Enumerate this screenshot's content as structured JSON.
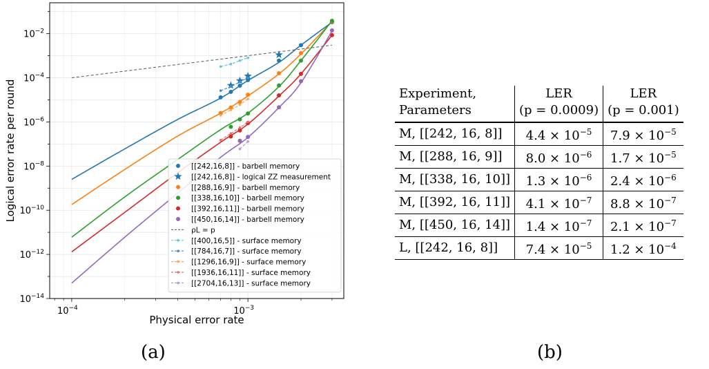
{
  "chart_data": {
    "type": "line",
    "xlabel": "Physical error rate",
    "ylabel": "Logical error rate per round",
    "x_scale": "log",
    "y_scale": "log",
    "xlim": [
      7.5e-05,
      0.0035
    ],
    "ylim": [
      1e-14,
      0.25
    ],
    "grid": true,
    "legend_placement": "lower-right",
    "x_ticks": [
      {
        "value": 0.0001,
        "label": "10"
      },
      {
        "value": 0.001,
        "label": "10"
      }
    ],
    "x_tick_exponents": [
      "−4",
      "−3"
    ],
    "y_ticks": [
      {
        "value": 1e-14,
        "label": "10",
        "exp": "−14"
      },
      {
        "value": 1e-12,
        "label": "10",
        "exp": "−12"
      },
      {
        "value": 1e-10,
        "label": "10",
        "exp": "−10"
      },
      {
        "value": 1e-08,
        "label": "10",
        "exp": "−8"
      },
      {
        "value": 1e-06,
        "label": "10",
        "exp": "−6"
      },
      {
        "value": 0.0001,
        "label": "10",
        "exp": "−4"
      },
      {
        "value": 0.01,
        "label": "10",
        "exp": "−2"
      }
    ],
    "series": [
      {
        "name": "[[242,16,8]] - barbell memory",
        "color": "#1f77b4",
        "style": "fit+markers",
        "curve": [
          [
            0.0001,
            2.5e-09
          ],
          [
            0.0002,
            6e-08
          ],
          [
            0.0004,
            1.3e-06
          ],
          [
            0.0007,
            1.2e-05
          ],
          [
            0.001,
            7.5e-05
          ],
          [
            0.0015,
            0.0005
          ],
          [
            0.002,
            0.003
          ],
          [
            0.003,
            0.033
          ]
        ],
        "markers": [
          [
            0.0007,
            1.3e-05
          ],
          [
            0.0008,
            2.3e-05
          ],
          [
            0.0009,
            4.4e-05
          ],
          [
            0.001,
            7.9e-05
          ],
          [
            0.0015,
            0.0006
          ],
          [
            0.002,
            0.003
          ],
          [
            0.003,
            0.033
          ]
        ]
      },
      {
        "name": "[[242,16,8]] - logical ZZ measurement",
        "color": "#1f77b4",
        "style": "stars",
        "markers": [
          [
            0.0008,
            4.5e-05
          ],
          [
            0.0009,
            7.4e-05
          ],
          [
            0.001,
            0.00012
          ],
          [
            0.0015,
            0.0011
          ]
        ]
      },
      {
        "name": "[[288,16,9]] - barbell memory",
        "color": "#ff7f0e",
        "style": "fit+markers",
        "curve": [
          [
            0.0001,
            1.8e-10
          ],
          [
            0.0002,
            7e-09
          ],
          [
            0.0004,
            2.3e-07
          ],
          [
            0.0007,
            2.5e-06
          ],
          [
            0.001,
            1.5e-05
          ],
          [
            0.0015,
            0.00015
          ],
          [
            0.002,
            0.0012
          ],
          [
            0.003,
            0.035
          ]
        ],
        "markers": [
          [
            0.0007,
            2.5e-06
          ],
          [
            0.0008,
            4.5e-06
          ],
          [
            0.0009,
            8e-06
          ],
          [
            0.001,
            1.7e-05
          ],
          [
            0.0015,
            0.00016
          ],
          [
            0.002,
            0.0013
          ],
          [
            0.003,
            0.035
          ]
        ]
      },
      {
        "name": "[[338,16,10]] - barbell memory",
        "color": "#2ca02c",
        "style": "fit+markers",
        "curve": [
          [
            0.0001,
            6e-12
          ],
          [
            0.0002,
            4e-10
          ],
          [
            0.0004,
            2e-08
          ],
          [
            0.0007,
            4.5e-07
          ],
          [
            0.001,
            2.5e-06
          ],
          [
            0.0015,
            4e-05
          ],
          [
            0.002,
            0.0006
          ],
          [
            0.003,
            0.038
          ]
        ],
        "markers": [
          [
            0.0008,
            6e-07
          ],
          [
            0.0009,
            1.3e-06
          ],
          [
            0.001,
            2.4e-06
          ],
          [
            0.0015,
            4.5e-05
          ],
          [
            0.002,
            0.0006
          ],
          [
            0.003,
            0.038
          ]
        ]
      },
      {
        "name": "[[392,16,11]] - barbell memory",
        "color": "#d62728",
        "style": "fit+markers",
        "curve": [
          [
            0.0001,
            1.3e-12
          ],
          [
            0.0002,
            8e-11
          ],
          [
            0.0004,
            5e-09
          ],
          [
            0.0007,
            1.2e-07
          ],
          [
            0.001,
            8e-07
          ],
          [
            0.0015,
            1.5e-05
          ],
          [
            0.002,
            0.00015
          ],
          [
            0.003,
            0.0085
          ]
        ],
        "markers": [
          [
            0.0008,
            2.2e-07
          ],
          [
            0.0009,
            4.1e-07
          ],
          [
            0.001,
            8.8e-07
          ],
          [
            0.0015,
            1.6e-05
          ],
          [
            0.002,
            0.00015
          ],
          [
            0.003,
            0.0085
          ]
        ]
      },
      {
        "name": "[[450,16,14]] - barbell memory",
        "color": "#9467bd",
        "style": "fit+markers",
        "curve": [
          [
            0.0001,
            5e-14
          ],
          [
            0.0002,
            6e-12
          ],
          [
            0.0004,
            6e-10
          ],
          [
            0.0007,
            2.5e-08
          ],
          [
            0.001,
            2e-07
          ],
          [
            0.0015,
            4.5e-06
          ],
          [
            0.002,
            6e-05
          ],
          [
            0.003,
            0.013
          ]
        ],
        "markers": [
          [
            0.0009,
            1.4e-07
          ],
          [
            0.001,
            2.1e-07
          ],
          [
            0.0015,
            4.6e-06
          ],
          [
            0.002,
            7e-05
          ],
          [
            0.003,
            0.014
          ]
        ]
      },
      {
        "name": "ρ_L = p",
        "legend_label": "ρL = p",
        "color": "#555555",
        "style": "dashed",
        "curve": [
          [
            0.0001,
            0.0001
          ],
          [
            0.003,
            0.003
          ]
        ]
      },
      {
        "name": "[[400,16,5]] - surface memory",
        "color": "#5bc8e6",
        "style": "dashed+small",
        "curve": [
          [
            0.0007,
            0.00032
          ],
          [
            0.0008,
            0.00042
          ],
          [
            0.0009,
            0.0006
          ],
          [
            0.001,
            0.0008
          ]
        ]
      },
      {
        "name": "[[784,16,7]] - surface memory",
        "color": "#4a8ec8",
        "style": "dashed+small",
        "curve": [
          [
            0.0007,
            2.6e-05
          ],
          [
            0.0008,
            4e-05
          ],
          [
            0.0009,
            6.5e-05
          ],
          [
            0.001,
            0.0001
          ]
        ]
      },
      {
        "name": "[[1296,16,9]] - surface memory",
        "color": "#ffa75a",
        "style": "dashed+small",
        "curve": [
          [
            0.0007,
            2e-06
          ],
          [
            0.0008,
            3.5e-06
          ],
          [
            0.0009,
            6e-06
          ],
          [
            0.001,
            1.1e-05
          ]
        ]
      },
      {
        "name": "[[1936,16,11]] - surface memory",
        "color": "#e3706e",
        "style": "dashed+small",
        "curve": [
          [
            0.0007,
            1.5e-07
          ],
          [
            0.0008,
            3e-07
          ],
          [
            0.0009,
            5.5e-07
          ],
          [
            0.001,
            1e-06
          ]
        ]
      },
      {
        "name": "[[2704,16,13]] - surface memory",
        "color": "#b79ad2",
        "style": "dashed+small",
        "curve": [
          [
            0.0009,
            6e-08
          ],
          [
            0.001,
            1.3e-07
          ]
        ]
      }
    ]
  },
  "captions": {
    "a": "(a)",
    "b": "(b)"
  },
  "table": {
    "header": {
      "col1": [
        "Experiment,",
        "Parameters"
      ],
      "col2": [
        "LER",
        "(p = 0.0009)"
      ],
      "col3": [
        "LER",
        "(p = 0.001)"
      ]
    },
    "rows": [
      {
        "exp": "M, [[242, 16, 8]]",
        "v1": "4.4 × 10",
        "e1": "−5",
        "v2": "7.9 × 10",
        "e2": "−5"
      },
      {
        "exp": "M, [[288, 16, 9]]",
        "v1": "8.0 × 10",
        "e1": "−6",
        "v2": "1.7 × 10",
        "e2": "−5"
      },
      {
        "exp": "M, [[338, 16, 10]]",
        "v1": "1.3 × 10",
        "e1": "−6",
        "v2": "2.4 × 10",
        "e2": "−6"
      },
      {
        "exp": "M, [[392, 16, 11]]",
        "v1": "4.1 × 10",
        "e1": "−7",
        "v2": "8.8 × 10",
        "e2": "−7"
      },
      {
        "exp": "M, [[450, 16, 14]]",
        "v1": "1.4 × 10",
        "e1": "−7",
        "v2": "2.1 × 10",
        "e2": "−7"
      },
      {
        "exp": "L, [[242, 16, 8]]",
        "v1": "7.4 × 10",
        "e1": "−5",
        "v2": "1.2 × 10",
        "e2": "−4"
      }
    ]
  }
}
